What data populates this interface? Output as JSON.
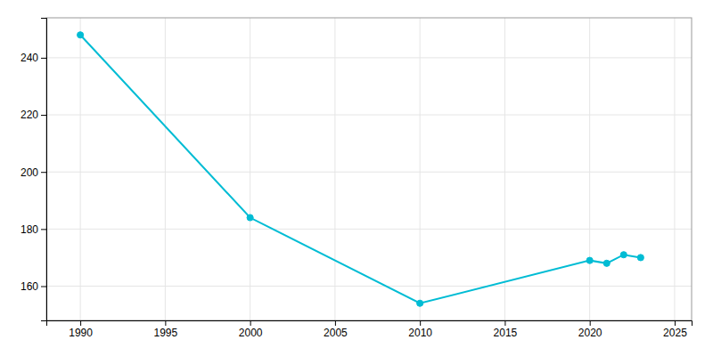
{
  "chart_data": {
    "type": "line",
    "x": [
      1990,
      2000,
      2010,
      2020,
      2021,
      2022,
      2023
    ],
    "values": [
      248,
      184,
      154,
      169,
      168,
      171,
      170
    ],
    "color": "#00bcd4",
    "marker": "circle",
    "xlim": [
      1988,
      2026
    ],
    "ylim": [
      148,
      254
    ],
    "xticks": [
      1990,
      1995,
      2000,
      2005,
      2010,
      2015,
      2020,
      2025
    ],
    "yticks": [
      160,
      180,
      200,
      220,
      240
    ],
    "grid": true
  }
}
